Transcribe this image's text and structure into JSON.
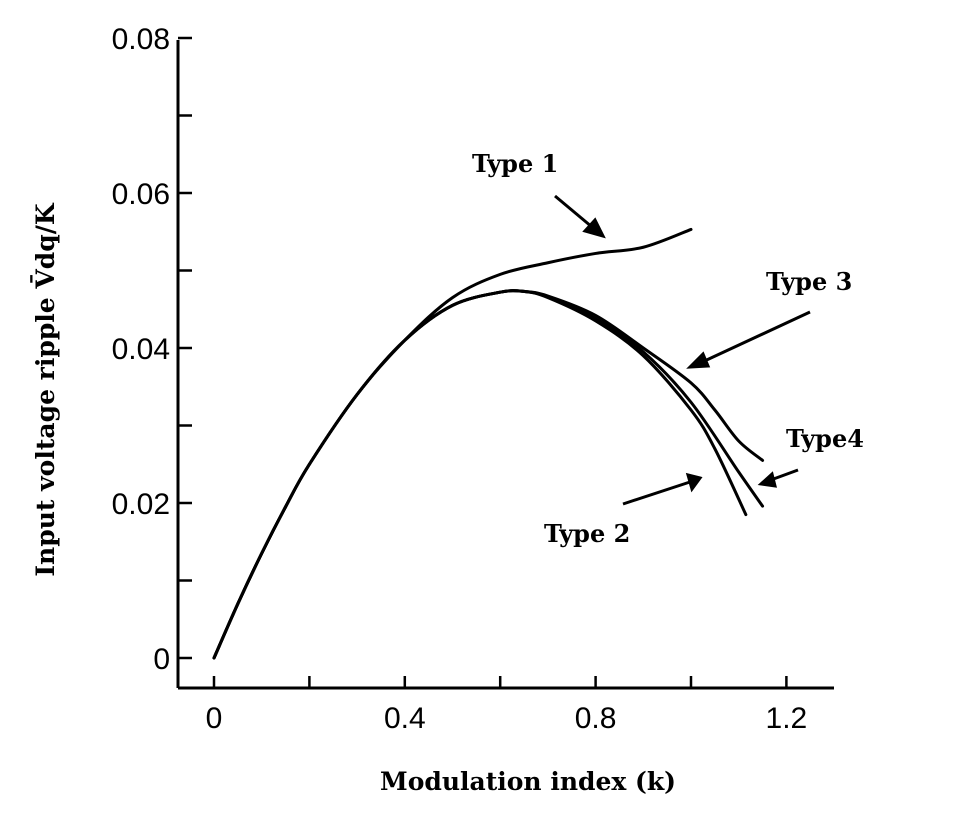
{
  "chart_data": {
    "type": "line",
    "title": "",
    "xlabel": "Modulation index (k)",
    "ylabel": "Input voltage ripple V̄dq/K",
    "xlim": [
      -0.075,
      1.3
    ],
    "ylim": [
      0,
      0.08
    ],
    "x_ticks": [
      "0",
      "0.4",
      "0.8",
      "1.2"
    ],
    "x_tick_values": [
      0,
      0.4,
      0.8,
      1.2
    ],
    "x_minor_ticks": [
      0.2,
      0.6,
      1.0
    ],
    "y_ticks": [
      "0",
      "0.02",
      "0.04",
      "0.06",
      "0.08"
    ],
    "y_tick_values": [
      0,
      0.02,
      0.04,
      0.06,
      0.08
    ],
    "y_minor_ticks": [
      0.01,
      0.03,
      0.05,
      0.07
    ],
    "grid": false,
    "line_color": "#000000",
    "series": [
      {
        "name": "Type 1",
        "x": [
          0,
          0.05,
          0.1,
          0.15,
          0.2,
          0.3,
          0.4,
          0.5,
          0.6,
          0.7,
          0.8,
          0.9,
          1.0
        ],
        "y": [
          0,
          0.007,
          0.0135,
          0.0195,
          0.025,
          0.034,
          0.041,
          0.0465,
          0.0495,
          0.051,
          0.0522,
          0.053,
          0.0553
        ]
      },
      {
        "name": "Type 2",
        "x": [
          0,
          0.05,
          0.1,
          0.15,
          0.2,
          0.3,
          0.4,
          0.5,
          0.6,
          0.65,
          0.7,
          0.8,
          0.9,
          1.0,
          1.05,
          1.115
        ],
        "y": [
          0,
          0.007,
          0.0135,
          0.0195,
          0.025,
          0.034,
          0.041,
          0.0455,
          0.0472,
          0.0473,
          0.0465,
          0.0435,
          0.039,
          0.032,
          0.027,
          0.0185
        ]
      },
      {
        "name": "Type 3",
        "x": [
          0,
          0.05,
          0.1,
          0.15,
          0.2,
          0.3,
          0.4,
          0.5,
          0.6,
          0.65,
          0.7,
          0.8,
          0.9,
          1.0,
          1.05,
          1.1,
          1.15
        ],
        "y": [
          0,
          0.007,
          0.0135,
          0.0195,
          0.025,
          0.034,
          0.041,
          0.0455,
          0.0472,
          0.0473,
          0.0467,
          0.0442,
          0.04,
          0.0355,
          0.032,
          0.028,
          0.0255
        ]
      },
      {
        "name": "Type4",
        "x": [
          0,
          0.05,
          0.1,
          0.15,
          0.2,
          0.3,
          0.4,
          0.5,
          0.6,
          0.65,
          0.7,
          0.8,
          0.9,
          1.0,
          1.1,
          1.15
        ],
        "y": [
          0,
          0.007,
          0.0135,
          0.0195,
          0.025,
          0.034,
          0.041,
          0.0455,
          0.0472,
          0.0473,
          0.0466,
          0.0438,
          0.0395,
          0.033,
          0.024,
          0.0196
        ]
      }
    ],
    "annotations": [
      "Type 1",
      "Type 3",
      "Type4",
      "Type 2"
    ]
  }
}
